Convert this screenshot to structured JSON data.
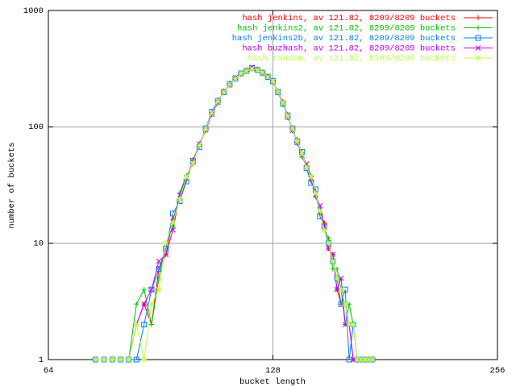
{
  "chart_data": {
    "type": "line",
    "x_label": "bucket length",
    "y_label": "number of buckets",
    "xlog": 2,
    "ylog": 10,
    "xlim": [
      64,
      256
    ],
    "ylim": [
      1,
      1000
    ],
    "xticks": [
      64,
      128,
      256
    ],
    "yticks": [
      1,
      10,
      100,
      1000
    ],
    "grid": true,
    "legend": "upper right",
    "x": [
      74,
      76,
      78,
      80,
      82,
      84,
      86,
      88,
      90,
      92,
      94,
      96,
      98,
      100,
      102,
      104,
      106,
      108,
      110,
      112,
      114,
      116,
      118,
      120,
      122,
      124,
      126,
      128,
      130,
      132,
      134,
      136,
      138,
      140,
      142,
      144,
      146,
      148,
      150,
      152,
      154,
      156,
      158,
      160,
      162,
      164,
      166,
      168,
      170,
      172,
      174
    ],
    "series": [
      {
        "name": "hash jenkins, av 121.82, 8209/8209 buckets",
        "color": "#ff0000",
        "marker": "plus",
        "values": [
          1,
          1,
          1,
          1,
          1,
          2,
          3,
          2,
          6,
          8,
          16,
          24,
          35,
          52,
          68,
          98,
          127,
          170,
          196,
          236,
          258,
          290,
          300,
          318,
          305,
          296,
          265,
          250,
          196,
          165,
          120,
          98,
          72,
          60,
          44,
          35,
          28,
          18,
          15,
          9,
          8,
          4,
          3,
          3,
          2,
          1,
          1,
          1,
          1,
          1,
          1
        ]
      },
      {
        "name": "hash jenkins2, av 121.82, 8209/8209 buckets",
        "color": "#00c000",
        "marker": "cross",
        "values": [
          1,
          1,
          1,
          1,
          1,
          3,
          4,
          2,
          5,
          10,
          14,
          27,
          38,
          48,
          72,
          92,
          133,
          160,
          205,
          226,
          265,
          280,
          310,
          312,
          315,
          285,
          275,
          240,
          205,
          155,
          128,
          92,
          78,
          55,
          47,
          38,
          25,
          20,
          13,
          11,
          6,
          6,
          4,
          2,
          3,
          2,
          1,
          1,
          1,
          1,
          1
        ]
      },
      {
        "name": "hash jenkins2b, av 121.82, 8209/8209 buckets",
        "color": "#0080ff",
        "marker": "square",
        "values": [
          1,
          1,
          1,
          1,
          1,
          1,
          2,
          4,
          6,
          9,
          18,
          23,
          34,
          51,
          67,
          97,
          135,
          168,
          198,
          233,
          260,
          288,
          302,
          320,
          308,
          292,
          268,
          247,
          198,
          158,
          122,
          97,
          74,
          61,
          44,
          33,
          29,
          17,
          14,
          10,
          7,
          5,
          3,
          4,
          1,
          2,
          1,
          1,
          1,
          1,
          1
        ]
      },
      {
        "name": "hash buzhash, av 121.82, 8209/8209 buckets",
        "color": "#c000ff",
        "marker": "x",
        "values": [
          1,
          1,
          1,
          1,
          1,
          2,
          3,
          4,
          7,
          8,
          13,
          26,
          37,
          50,
          71,
          94,
          128,
          162,
          202,
          228,
          266,
          284,
          307,
          325,
          312,
          288,
          272,
          243,
          203,
          162,
          127,
          93,
          76,
          57,
          48,
          36,
          26,
          21,
          14,
          9,
          8,
          4,
          5,
          2,
          2,
          1,
          1,
          1,
          1,
          1,
          1
        ]
      },
      {
        "name": "hash random, av 121.82, 8209/8209 buckets",
        "color": "#c0ff40",
        "marker": "star",
        "values": [
          1,
          1,
          1,
          1,
          1,
          2,
          1,
          3,
          4,
          10,
          15,
          24,
          37,
          49,
          69,
          96,
          131,
          166,
          199,
          231,
          261,
          286,
          304,
          314,
          309,
          291,
          269,
          246,
          201,
          161,
          124,
          96,
          75,
          59,
          45,
          37,
          27,
          19,
          13,
          10,
          7,
          5,
          4,
          3,
          2,
          2,
          1,
          1,
          1,
          1,
          1
        ]
      }
    ]
  }
}
